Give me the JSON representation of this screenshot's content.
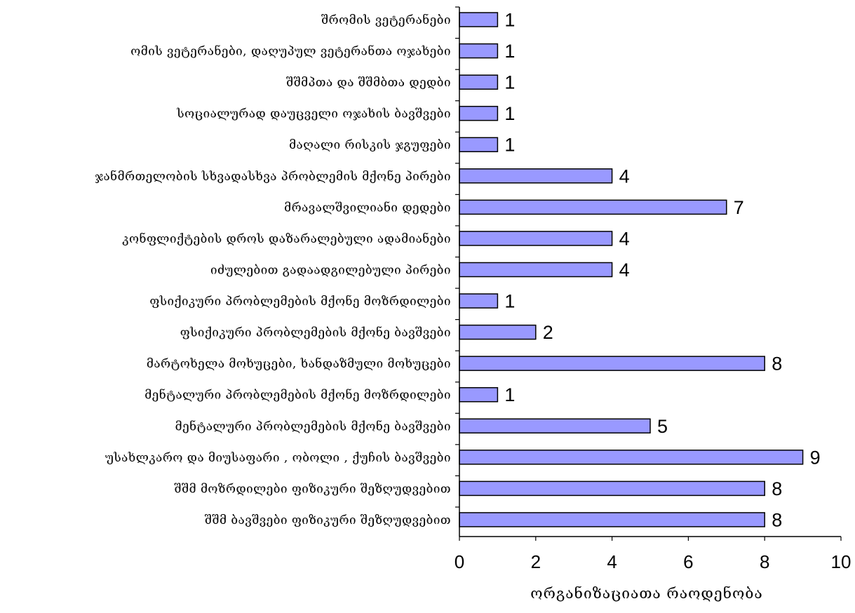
{
  "chart_data": {
    "type": "bar",
    "orientation": "horizontal",
    "categories": [
      "შრომის ვეტერანები",
      "ომის ვეტერანები, დაღუპულ ვეტერანთა ოჯახები",
      "შშმპთა და შშმბთა დედბი",
      "სოციალურად დაუცველი ოჯახის ბავშვები",
      "მაღალი რისკის ჯგუფები",
      "ჯანმრთელობის სხვადასხვა პრობლემის მქონე პირები",
      "მრავალშვილიანი დედები",
      "კონფლიქტების დროს დაზარალებული ადამიანები",
      "იძულებით გადაადგილებული პირები",
      "ფსიქიკური პრობლემების მქონე მოზრდილები",
      "ფსიქიკური პრობლემების მქონე ბავშვები",
      "მარტოხელა მოხუცები, ხანდაზმული მოხუცები",
      "მენტალური პრობლემების მქონე მოზრდილები",
      "მენტალური პრობლემების მქონე ბავშვები",
      "უსახლკარო და მიუსაფარი , ობოლი , ქუჩის ბავშვები",
      "შშმ მოზრდილები ფიზიკური შეზღუდვებით",
      "შშმ ბავშვები ფიზიკური შეზღუდვებით"
    ],
    "values": [
      1,
      1,
      1,
      1,
      1,
      4,
      7,
      4,
      4,
      1,
      2,
      8,
      1,
      5,
      9,
      8,
      8
    ],
    "xlabel": "ორგანიზაციათა რაოდენობა",
    "ylabel": "",
    "xlim": [
      0,
      10
    ],
    "xticks": [
      0,
      2,
      4,
      6,
      8,
      10
    ],
    "bar_color": "#9999ff",
    "bar_edge_color": "#000000",
    "grid": false,
    "legend": "none"
  }
}
